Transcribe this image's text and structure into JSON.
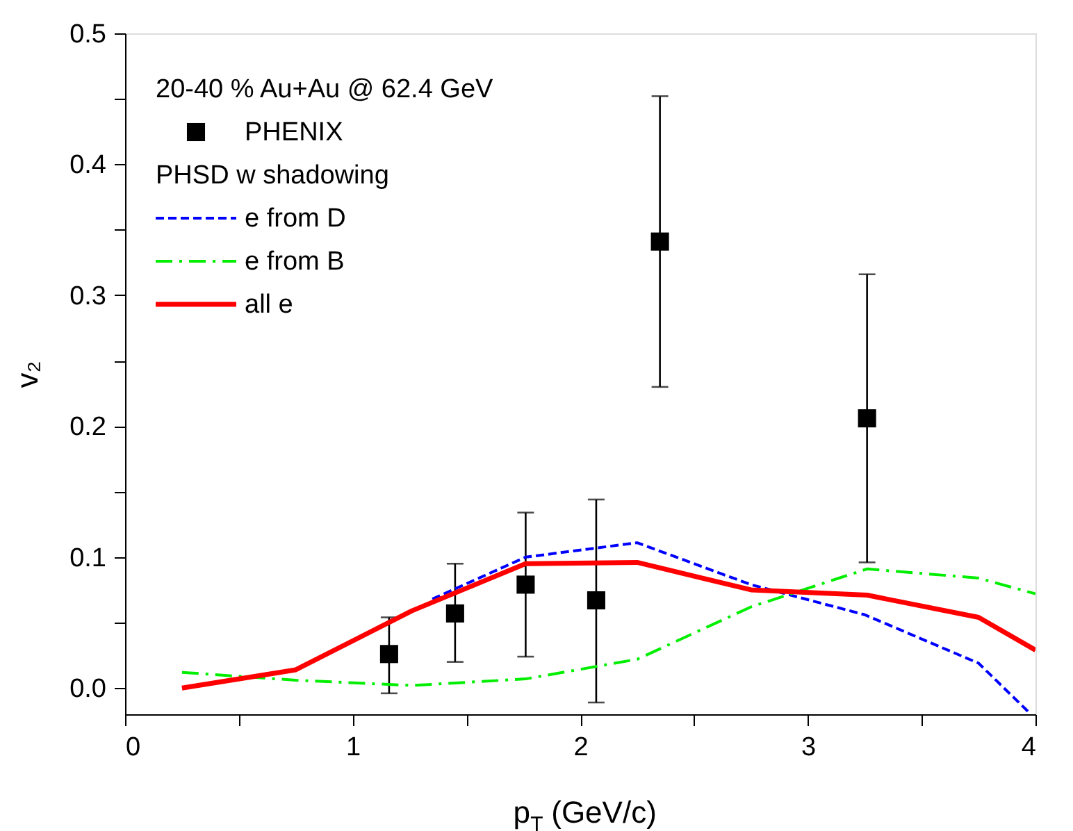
{
  "chart_data": {
    "type": "line",
    "xlabel": "p$_{T}$ (GeV/c)",
    "ylabel": "v₂",
    "xlim": [
      0,
      4
    ],
    "ylim": [
      -0.02,
      0.5
    ],
    "xticks": [
      0,
      {
        "value": 0.5,
        "label": null
      },
      1,
      {
        "value": 1.5,
        "label": null
      },
      2,
      {
        "value": 2.5,
        "label": null
      },
      3,
      {
        "value": 3.5,
        "label": null
      },
      4
    ],
    "yticks": [
      "0.0",
      {
        "value": 0.05,
        "label": null
      },
      {
        "value": 0.1,
        "label": "0.1"
      },
      {
        "value": 0.15,
        "label": null
      },
      {
        "value": 0.2,
        "label": "0.2"
      },
      {
        "value": 0.25,
        "label": null
      },
      {
        "value": 0.3,
        "label": "0.3"
      },
      {
        "value": 0.35,
        "label": null
      },
      {
        "value": 0.4,
        "label": "0.4"
      },
      {
        "value": 0.45,
        "label": null
      },
      {
        "value": 0.5,
        "label": "0.5"
      }
    ],
    "grid": false,
    "legend": "top left",
    "annotations": [
      "20-40 % Au+Au @ 62.4 GeV",
      "PHSD w shadowing"
    ],
    "series": [
      {
        "name": "PHENIX",
        "type": "scatter",
        "marker": "square",
        "color": "#000000",
        "x": [
          1.16,
          1.45,
          1.76,
          2.07,
          2.35,
          3.26
        ],
        "values": [
          0.026,
          0.057,
          0.079,
          0.067,
          0.341,
          0.206
        ],
        "errors": [
          [
            -0.004,
            0.054
          ],
          [
            0.02,
            0.095
          ],
          [
            0.024,
            0.134
          ],
          [
            -0.011,
            0.144
          ],
          [
            0.23,
            0.452
          ],
          [
            0.096,
            0.316
          ]
        ]
      },
      {
        "name": "e from D",
        "line_style": "dashed",
        "color": "#0000ff",
        "x": [
          1.35,
          1.76,
          2.25,
          2.75,
          3.25,
          3.75,
          3.98
        ],
        "values": [
          0.068,
          0.1,
          0.111,
          0.079,
          0.056,
          0.019,
          -0.02
        ]
      },
      {
        "name": "e from B",
        "line_style": "dashdot",
        "color": "#00ee00",
        "x": [
          0.25,
          0.75,
          1.26,
          1.76,
          2.25,
          2.75,
          3.26,
          3.75,
          4.0
        ],
        "values": [
          0.012,
          0.006,
          0.002,
          0.007,
          0.022,
          0.062,
          0.091,
          0.084,
          0.072
        ]
      },
      {
        "name": "all e",
        "line_style": "solid",
        "color": "#ff0000",
        "x": [
          0.25,
          0.75,
          1.26,
          1.76,
          2.25,
          2.75,
          3.26,
          3.75,
          4.0
        ],
        "values": [
          0.0,
          0.014,
          0.059,
          0.095,
          0.096,
          0.075,
          0.071,
          0.054,
          0.029
        ]
      }
    ]
  }
}
